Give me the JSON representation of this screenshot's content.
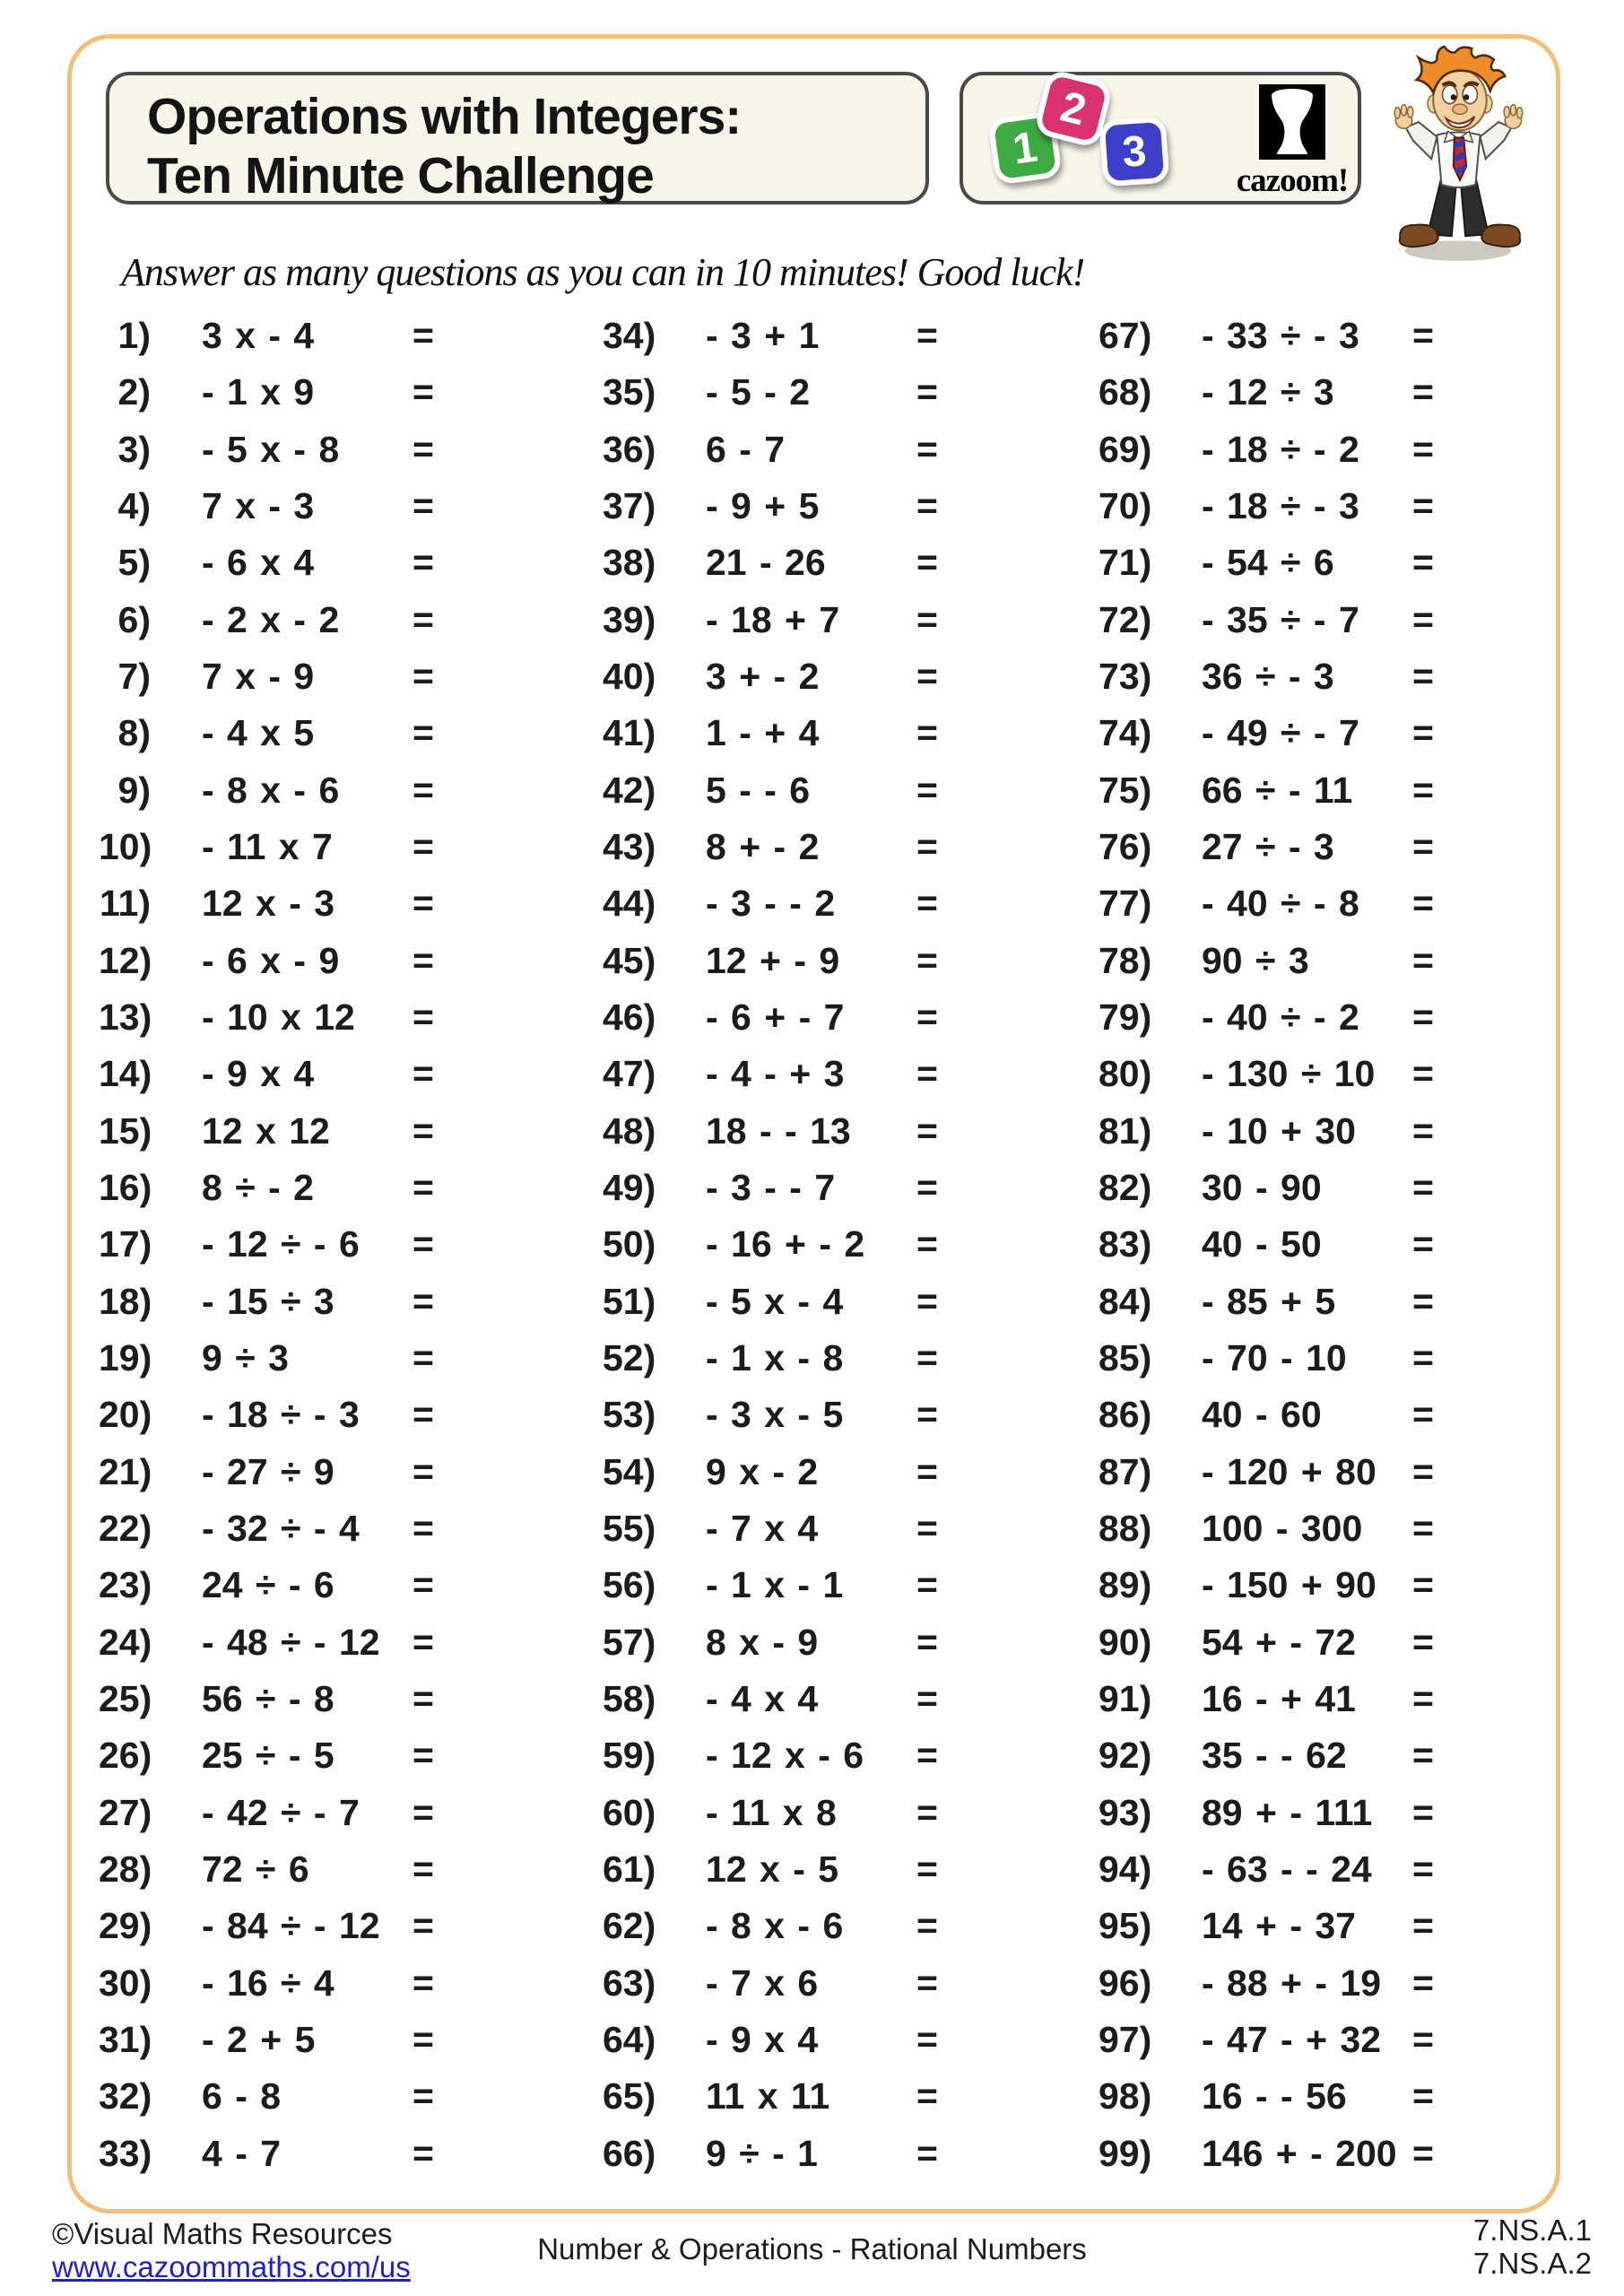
{
  "header": {
    "title_line1": "Operations with Integers:",
    "title_line2": "Ten Minute Challenge",
    "tiles": [
      {
        "label": "1",
        "color": "#3fa944"
      },
      {
        "label": "2",
        "color": "#d8336f"
      },
      {
        "label": "3",
        "color": "#3e3fc9"
      }
    ],
    "brand": "cazoom!"
  },
  "instruction": "Answer as many questions as you can in 10 minutes! Good luck!",
  "equals_sign": "=",
  "questions": [
    {
      "num": "1)",
      "expr": "3 x - 4"
    },
    {
      "num": "2)",
      "expr": "- 1 x 9"
    },
    {
      "num": "3)",
      "expr": "- 5 x - 8"
    },
    {
      "num": "4)",
      "expr": "7 x - 3"
    },
    {
      "num": "5)",
      "expr": "- 6 x 4"
    },
    {
      "num": "6)",
      "expr": "- 2 x - 2"
    },
    {
      "num": "7)",
      "expr": "7 x - 9"
    },
    {
      "num": "8)",
      "expr": "- 4 x 5"
    },
    {
      "num": "9)",
      "expr": "- 8 x - 6"
    },
    {
      "num": "10)",
      "expr": "- 11 x 7"
    },
    {
      "num": "11)",
      "expr": "12 x - 3"
    },
    {
      "num": "12)",
      "expr": "- 6 x - 9"
    },
    {
      "num": "13)",
      "expr": "- 10 x 12"
    },
    {
      "num": "14)",
      "expr": "- 9 x 4"
    },
    {
      "num": "15)",
      "expr": "12 x 12"
    },
    {
      "num": "16)",
      "expr": "8 ÷ - 2"
    },
    {
      "num": "17)",
      "expr": "- 12 ÷ - 6"
    },
    {
      "num": "18)",
      "expr": "- 15 ÷ 3"
    },
    {
      "num": "19)",
      "expr": "9 ÷ 3"
    },
    {
      "num": "20)",
      "expr": "- 18 ÷ - 3"
    },
    {
      "num": "21)",
      "expr": "- 27 ÷ 9"
    },
    {
      "num": "22)",
      "expr": "- 32 ÷ - 4"
    },
    {
      "num": "23)",
      "expr": "24 ÷ - 6"
    },
    {
      "num": "24)",
      "expr": "- 48 ÷ - 12"
    },
    {
      "num": "25)",
      "expr": "56 ÷ - 8"
    },
    {
      "num": "26)",
      "expr": "25 ÷ - 5"
    },
    {
      "num": "27)",
      "expr": "- 42 ÷ - 7"
    },
    {
      "num": "28)",
      "expr": "72 ÷ 6"
    },
    {
      "num": "29)",
      "expr": "- 84 ÷ - 12"
    },
    {
      "num": "30)",
      "expr": "- 16 ÷ 4"
    },
    {
      "num": "31)",
      "expr": "- 2 + 5"
    },
    {
      "num": "32)",
      "expr": "6 - 8"
    },
    {
      "num": "33)",
      "expr": "4 - 7"
    },
    {
      "num": "34)",
      "expr": "- 3 + 1"
    },
    {
      "num": "35)",
      "expr": "- 5 - 2"
    },
    {
      "num": "36)",
      "expr": "6 - 7"
    },
    {
      "num": "37)",
      "expr": "- 9 + 5"
    },
    {
      "num": "38)",
      "expr": "21 - 26"
    },
    {
      "num": "39)",
      "expr": "- 18 + 7"
    },
    {
      "num": "40)",
      "expr": "3 + -  2"
    },
    {
      "num": "41)",
      "expr": "1 - +  4"
    },
    {
      "num": "42)",
      "expr": "5 - -  6"
    },
    {
      "num": "43)",
      "expr": "8 + -  2"
    },
    {
      "num": "44)",
      "expr": "- 3 - -  2"
    },
    {
      "num": "45)",
      "expr": "12 + -  9"
    },
    {
      "num": "46)",
      "expr": "- 6 + -  7"
    },
    {
      "num": "47)",
      "expr": "- 4 - +  3"
    },
    {
      "num": "48)",
      "expr": "18 - -  13"
    },
    {
      "num": "49)",
      "expr": "- 3 - -  7"
    },
    {
      "num": "50)",
      "expr": "- 16 + -  2"
    },
    {
      "num": "51)",
      "expr": "- 5 x - 4"
    },
    {
      "num": "52)",
      "expr": "- 1 x - 8"
    },
    {
      "num": "53)",
      "expr": "- 3 x - 5"
    },
    {
      "num": "54)",
      "expr": "9 x - 2"
    },
    {
      "num": "55)",
      "expr": "- 7 x 4"
    },
    {
      "num": "56)",
      "expr": "- 1 x - 1"
    },
    {
      "num": "57)",
      "expr": "8 x - 9"
    },
    {
      "num": "58)",
      "expr": "- 4 x 4"
    },
    {
      "num": "59)",
      "expr": "- 12 x - 6"
    },
    {
      "num": "60)",
      "expr": "- 11 x 8"
    },
    {
      "num": "61)",
      "expr": "12 x - 5"
    },
    {
      "num": "62)",
      "expr": "- 8 x - 6"
    },
    {
      "num": "63)",
      "expr": "- 7 x 6"
    },
    {
      "num": "64)",
      "expr": "- 9 x 4"
    },
    {
      "num": "65)",
      "expr": "11 x 11"
    },
    {
      "num": "66)",
      "expr": "9 ÷ - 1"
    },
    {
      "num": "67)",
      "expr": "- 33 ÷ - 3"
    },
    {
      "num": "68)",
      "expr": "- 12 ÷ 3"
    },
    {
      "num": "69)",
      "expr": "- 18 ÷ - 2"
    },
    {
      "num": "70)",
      "expr": "- 18 ÷ - 3"
    },
    {
      "num": "71)",
      "expr": "- 54 ÷ 6"
    },
    {
      "num": "72)",
      "expr": "- 35 ÷ - 7"
    },
    {
      "num": "73)",
      "expr": "36 ÷ - 3"
    },
    {
      "num": "74)",
      "expr": "- 49 ÷ - 7"
    },
    {
      "num": "75)",
      "expr": "66 ÷ - 11"
    },
    {
      "num": "76)",
      "expr": "27 ÷ - 3"
    },
    {
      "num": "77)",
      "expr": "- 40 ÷ - 8"
    },
    {
      "num": "78)",
      "expr": "90 ÷ 3"
    },
    {
      "num": "79)",
      "expr": "- 40 ÷ - 2"
    },
    {
      "num": "80)",
      "expr": "- 130 ÷ 10"
    },
    {
      "num": "81)",
      "expr": "- 10 + 30"
    },
    {
      "num": "82)",
      "expr": "30 - 90"
    },
    {
      "num": "83)",
      "expr": "40 - 50"
    },
    {
      "num": "84)",
      "expr": "- 85 + 5"
    },
    {
      "num": "85)",
      "expr": "- 70 - 10"
    },
    {
      "num": "86)",
      "expr": "40 - 60"
    },
    {
      "num": "87)",
      "expr": "- 120 + 80"
    },
    {
      "num": "88)",
      "expr": "100 - 300"
    },
    {
      "num": "89)",
      "expr": "- 150 + 90"
    },
    {
      "num": "90)",
      "expr": "54 + - 72"
    },
    {
      "num": "91)",
      "expr": "16 - + 41"
    },
    {
      "num": "92)",
      "expr": "35 - - 62"
    },
    {
      "num": "93)",
      "expr": "89 + - 111"
    },
    {
      "num": "94)",
      "expr": "- 63 - - 24"
    },
    {
      "num": "95)",
      "expr": "14 + - 37"
    },
    {
      "num": "96)",
      "expr": "- 88 + - 19"
    },
    {
      "num": "97)",
      "expr": "- 47 - + 32"
    },
    {
      "num": "98)",
      "expr": "16 - - 56"
    },
    {
      "num": "99)",
      "expr": "146 + - 200"
    }
  ],
  "footer": {
    "copyright": "©Visual Maths Resources",
    "link": "www.cazoommaths.com/us",
    "center": "Number & Operations - Rational Numbers",
    "standards": [
      "7.NS.A.1",
      "7.NS.A.2"
    ]
  },
  "colors": {
    "page_border": "#f4be78",
    "box_border": "#4a4a4a",
    "box_fill": "#f8f5ea",
    "text": "#1c1c1c",
    "link_blue": "#1f1fd1",
    "tile_green": "#3fa944",
    "tile_pink": "#d8336f",
    "tile_blue": "#3e3fc9",
    "hair_orange": "#ee8c2a"
  }
}
